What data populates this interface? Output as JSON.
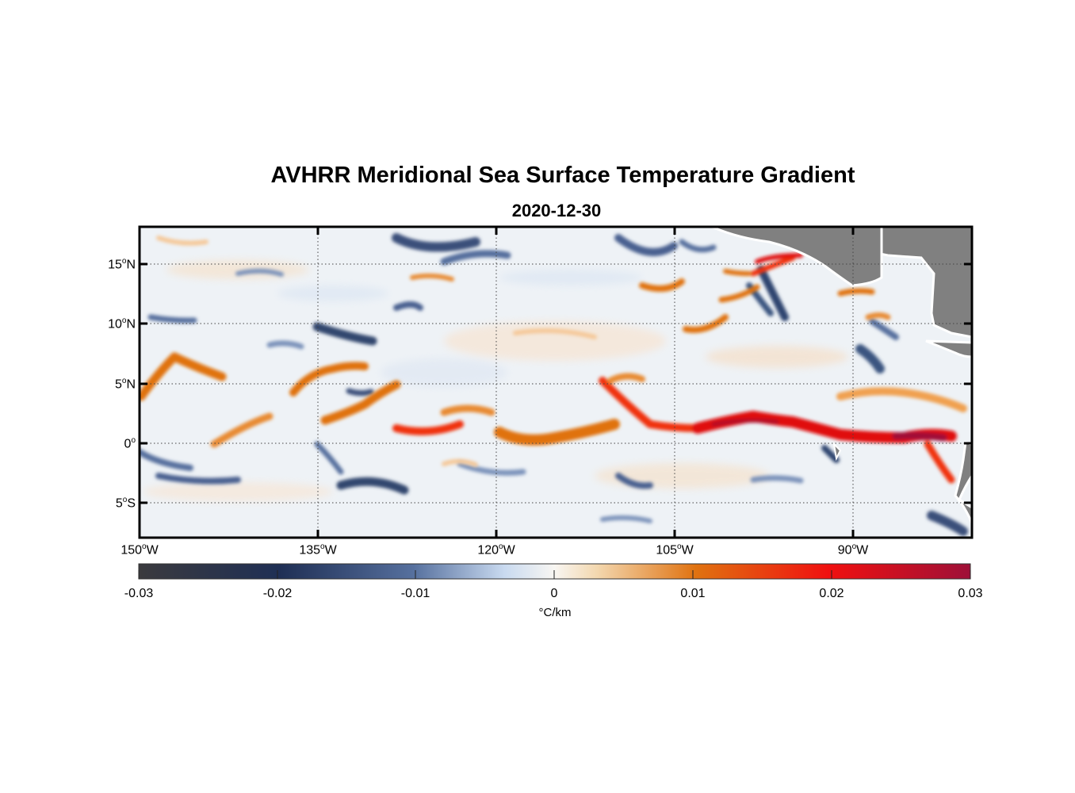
{
  "title": "AVHRR Meridional Sea Surface Temperature Gradient",
  "subtitle": "2020-12-30",
  "map": {
    "lon_range": [
      -150,
      -80
    ],
    "lat_range": [
      -8,
      18
    ],
    "projection": "equirectangular",
    "grid": "dotted",
    "land_color": "#808080",
    "y_ticks": [
      {
        "value": 15,
        "text": "15",
        "sup": "o",
        "hem": "N"
      },
      {
        "value": 10,
        "text": "10",
        "sup": "o",
        "hem": "N"
      },
      {
        "value": 5,
        "text": "5",
        "sup": "o",
        "hem": "N"
      },
      {
        "value": 0,
        "text": "0",
        "sup": "o",
        "hem": ""
      },
      {
        "value": -5,
        "text": "5",
        "sup": "o",
        "hem": "S"
      }
    ],
    "x_ticks": [
      {
        "value": -150,
        "text": "150",
        "sup": "o",
        "hem": "W"
      },
      {
        "value": -135,
        "text": "135",
        "sup": "o",
        "hem": "W"
      },
      {
        "value": -120,
        "text": "120",
        "sup": "o",
        "hem": "W"
      },
      {
        "value": -105,
        "text": "105",
        "sup": "o",
        "hem": "W"
      },
      {
        "value": -90,
        "text": "90",
        "sup": "o",
        "hem": "W"
      }
    ]
  },
  "colorbar": {
    "range": [
      -0.03,
      0.03
    ],
    "ticks": [
      "-0.03",
      "-0.02",
      "-0.01",
      "0",
      "0.01",
      "0.02",
      "0.03"
    ],
    "unit": "°C/km",
    "colors": [
      "#3a3a3e",
      "#1f2f55",
      "#56709e",
      "#c9daf0",
      "#f8f6f2",
      "#f3d8b0",
      "#e07210",
      "#f01010",
      "#9e1038"
    ]
  }
}
